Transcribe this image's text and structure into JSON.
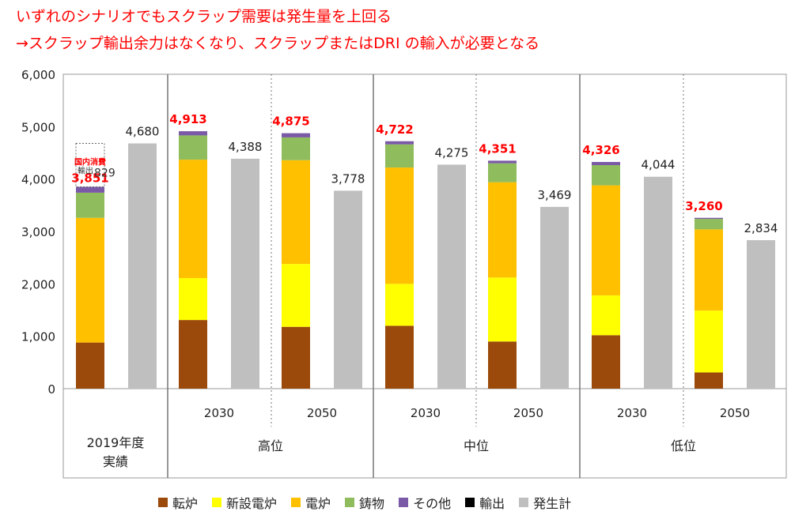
{
  "headline": {
    "line1": "いずれのシナリオでもスクラップ需要は発生量を上回る",
    "line2": "→スクラップ輸出余力はなくなり、スクラップまたはDRI の輸入が必要となる"
  },
  "chart_data": {
    "type": "bar",
    "stacked": true,
    "ylim": [
      0,
      6000
    ],
    "yticks": [
      "0",
      "1,000",
      "2,000",
      "3,000",
      "4,000",
      "5,000",
      "6,000"
    ],
    "grid": false,
    "legend_position": "bottom",
    "colors": {
      "転炉": "#9b4a0b",
      "新設電炉": "#ffff00",
      "電炉": "#ffc000",
      "鋳物": "#8fbc5c",
      "その他": "#7a5aa6",
      "輸出": "#000000",
      "発生計": "#bfbfbf"
    },
    "legend": [
      "転炉",
      "新設電炉",
      "電炉",
      "鋳物",
      "その他",
      "輸出",
      "発生計"
    ],
    "groups": [
      {
        "label": "2019年度\n実績",
        "scenario": "",
        "year": "",
        "demand": {
          "転炉": 880,
          "新設電炉": 0,
          "電炉": 2380,
          "鋳物": 480,
          "その他": 111,
          "輸出": 829
        },
        "demand_total": "3,851",
        "generation": 4680,
        "generation_label": "4,680",
        "annotations": {
          "export_label": "輸出",
          "export_value": "829",
          "domestic_label": "国内消費"
        }
      },
      {
        "label": "2030",
        "scenario": "高位",
        "year": "2030",
        "demand": {
          "転炉": 1310,
          "新設電炉": 800,
          "電炉": 2260,
          "鋳物": 463,
          "その他": 80
        },
        "demand_total": "4,913",
        "generation": 4388,
        "generation_label": "4,388"
      },
      {
        "label": "2050",
        "scenario": "高位",
        "year": "2050",
        "demand": {
          "転炉": 1180,
          "新設電炉": 1200,
          "電炉": 1980,
          "鋳物": 435,
          "その他": 80
        },
        "demand_total": "4,875",
        "generation": 3778,
        "generation_label": "3,778"
      },
      {
        "label": "2030",
        "scenario": "中位",
        "year": "2030",
        "demand": {
          "転炉": 1200,
          "新設電炉": 800,
          "電炉": 2220,
          "鋳物": 442,
          "その他": 60
        },
        "demand_total": "4,722",
        "generation": 4275,
        "generation_label": "4,275"
      },
      {
        "label": "2050",
        "scenario": "中位",
        "year": "2050",
        "demand": {
          "転炉": 900,
          "新設電炉": 1220,
          "電炉": 1820,
          "鋳物": 361,
          "その他": 50
        },
        "demand_total": "4,351",
        "generation": 3469,
        "generation_label": "3,469"
      },
      {
        "label": "2030",
        "scenario": "低位",
        "year": "2030",
        "demand": {
          "転炉": 1020,
          "新設電炉": 760,
          "電炉": 2100,
          "鋳物": 386,
          "その他": 60
        },
        "demand_total": "4,326",
        "generation": 4044,
        "generation_label": "4,044"
      },
      {
        "label": "2050",
        "scenario": "低位",
        "year": "2050",
        "demand": {
          "転炉": 310,
          "新設電炉": 1180,
          "電炉": 1550,
          "鋳物": 200,
          "その他": 20
        },
        "demand_total": "3,260",
        "generation": 2834,
        "generation_label": "2,834"
      }
    ],
    "scenarios": [
      "高位",
      "中位",
      "低位"
    ],
    "base_label": "2019年度\n実績"
  }
}
